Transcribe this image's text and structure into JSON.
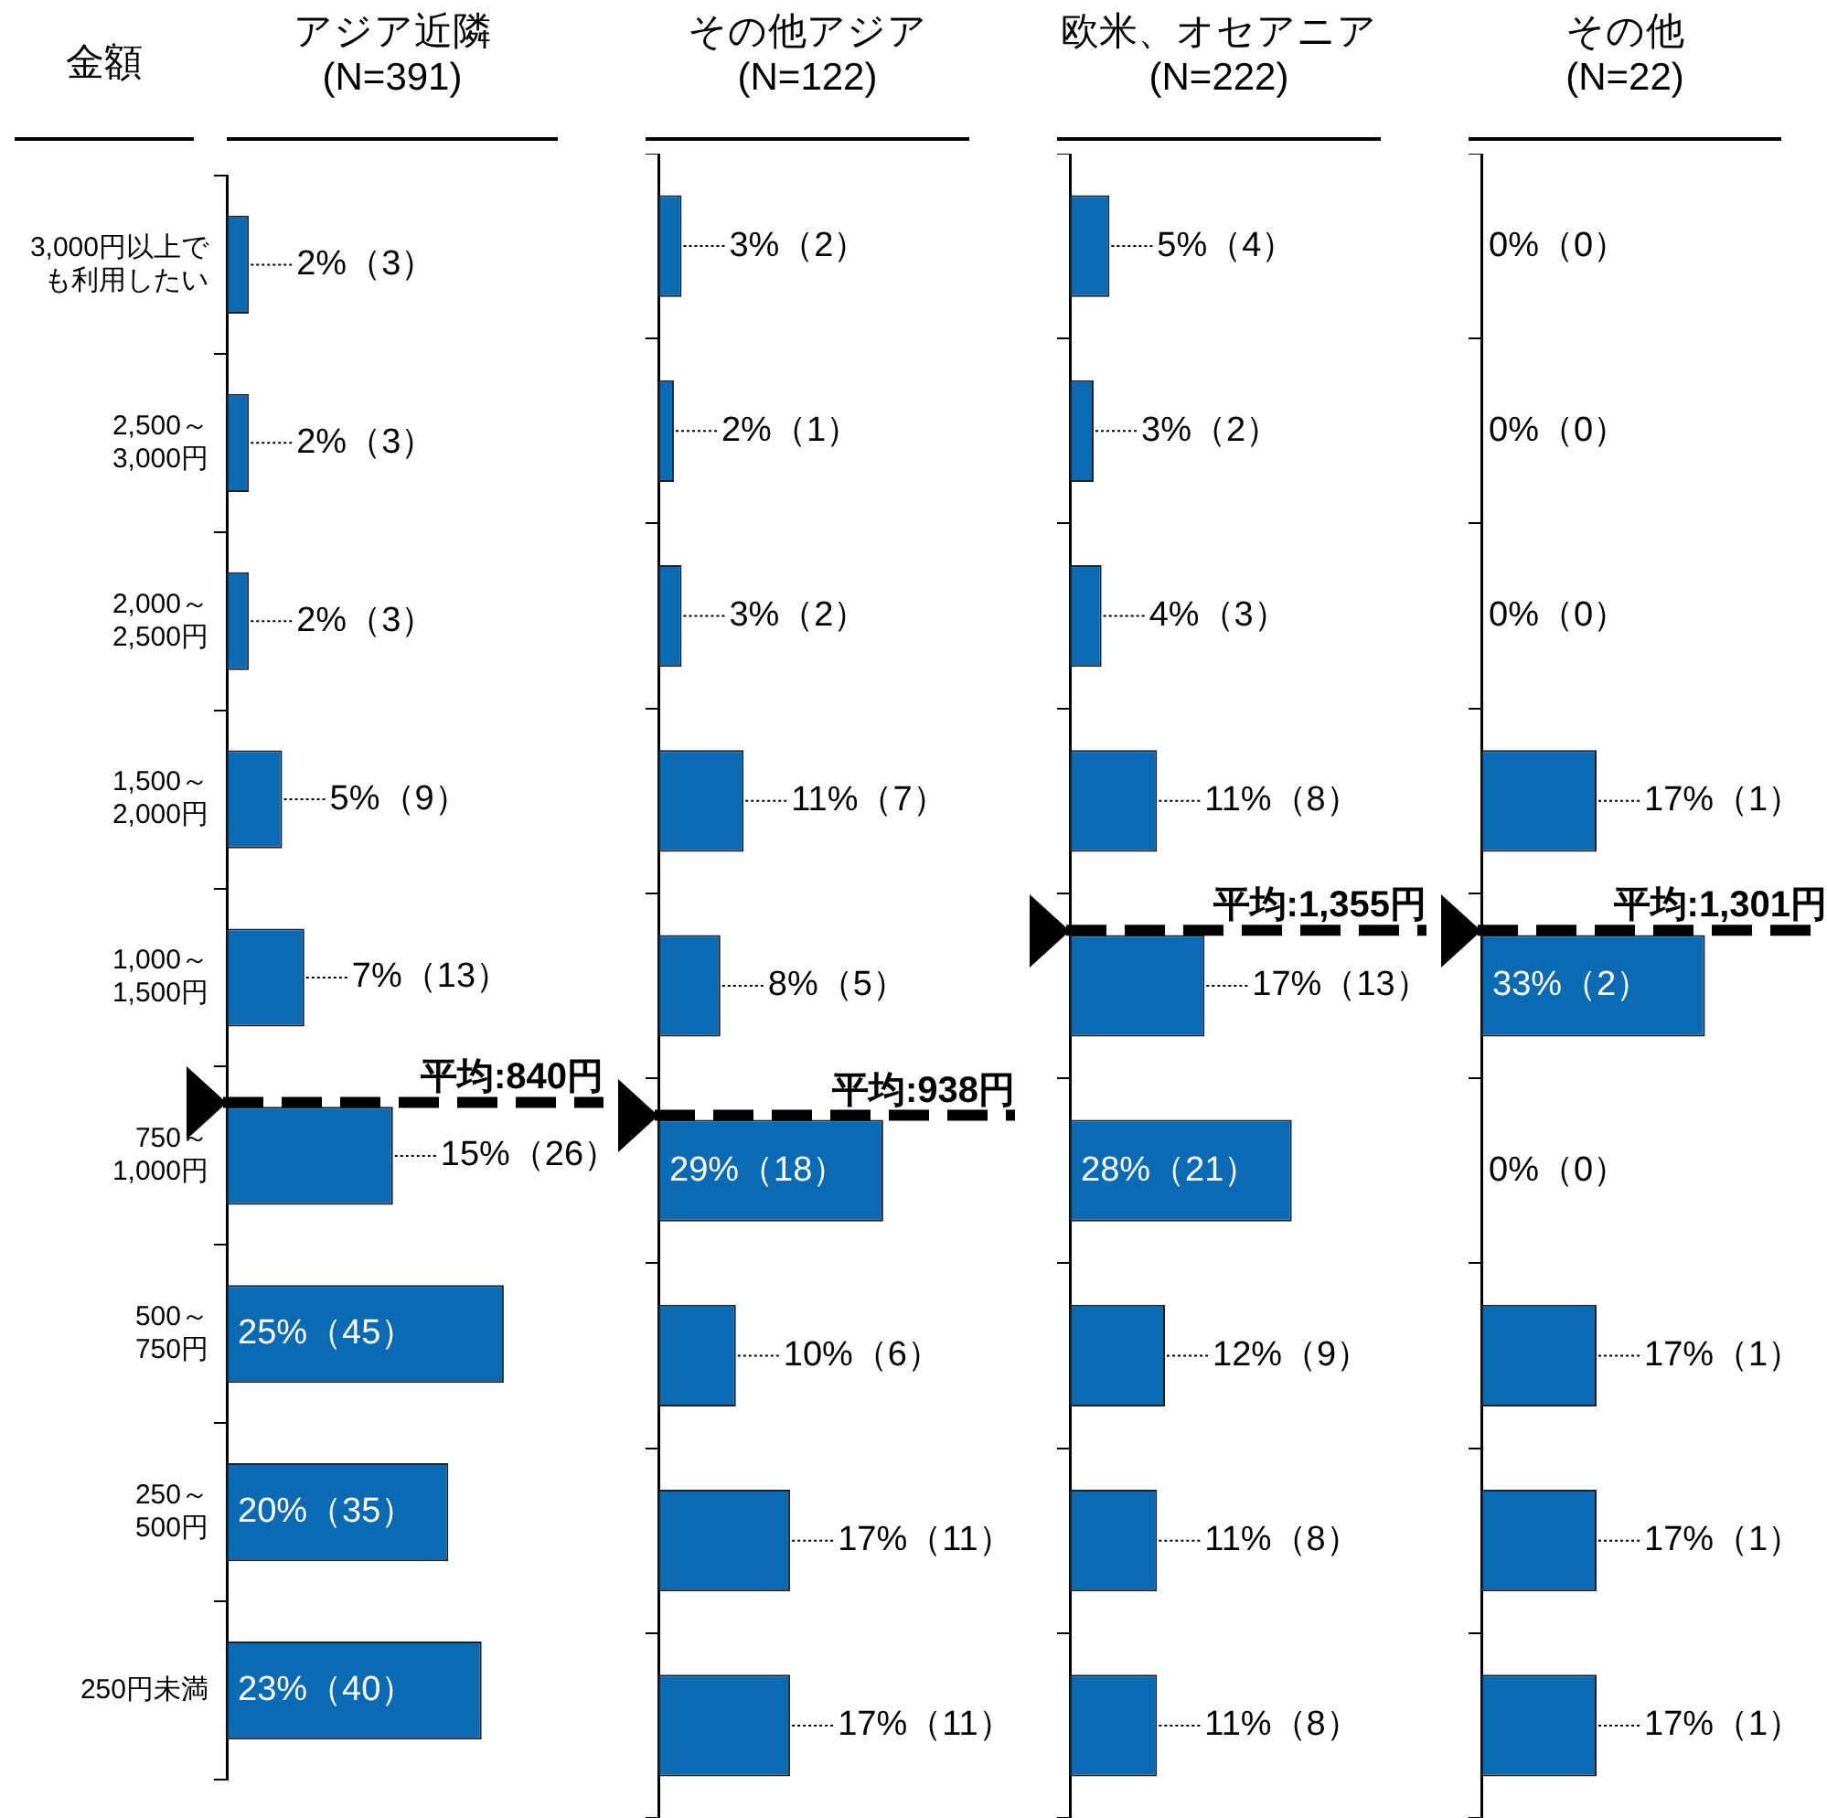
{
  "chart_data": [
    {
      "type": "bar",
      "orientation": "horizontal",
      "title": "アジア近隣\n(N=391)",
      "ylabel": "金額",
      "categories": [
        "3,000円以上でも利用したい",
        "2,500～\n3,000円",
        "2,000～\n2,500円",
        "1,500～\n2,000円",
        "1,000～\n1,500円",
        "750～\n1,000円",
        "500～\n750円",
        "250～\n500円",
        "250円未満"
      ],
      "values": [
        2,
        2,
        2,
        5,
        7,
        15,
        25,
        20,
        23
      ],
      "value_labels": [
        "2%（3）",
        "2%（3）",
        "2%（3）",
        "5%（9）",
        "7%（13）",
        "15%（26）",
        "25%（45）",
        "20%（35）",
        "23%（40）"
      ],
      "color": "#0a6ab4",
      "xlim": [
        0,
        34
      ],
      "tick_labels": "y",
      "legend": false,
      "ref_lines": [
        {
          "axis": "y",
          "value": "750～\n1,000円",
          "label": "平均:840円",
          "line_style": "dashed",
          "color": "#000000"
        }
      ]
    },
    {
      "type": "bar",
      "orientation": "horizontal",
      "title": "その他アジア\n(N=122)",
      "categories": [
        "3,000円以上でも利用したい",
        "2,500～\n3,000円",
        "2,000～\n2,500円",
        "1,500～\n2,000円",
        "1,000～\n1,500円",
        "750～\n1,000円",
        "500～\n750円",
        "250～\n500円",
        "250円未満"
      ],
      "values": [
        3,
        2,
        3,
        11,
        8,
        29,
        10,
        17,
        17
      ],
      "value_labels": [
        "3%（2）",
        "2%（1）",
        "3%（2）",
        "11%（7）",
        "8%（5）",
        "29%（18）",
        "10%（6）",
        "17%（11）",
        "17%（11）"
      ],
      "color": "#0a6ab4",
      "xlim": [
        0,
        46
      ],
      "tick_labels": false,
      "legend": false,
      "ref_lines": [
        {
          "axis": "y",
          "value": "750～\n1,000円",
          "label": "平均:938円",
          "line_style": "dashed",
          "color": "#000000"
        }
      ]
    },
    {
      "type": "bar",
      "orientation": "horizontal",
      "title": "欧米、オセアニア\n(N=222)",
      "categories": [
        "3,000円以上でも利用したい",
        "2,500～\n3,000円",
        "2,000～\n2,500円",
        "1,500～\n2,000円",
        "1,000～\n1,500円",
        "750～\n1,000円",
        "500～\n750円",
        "250～\n500円",
        "250円未満"
      ],
      "values": [
        5,
        3,
        4,
        11,
        17,
        28,
        12,
        11,
        11
      ],
      "value_labels": [
        "5%（4）",
        "3%（2）",
        "4%（3）",
        "11%（8）",
        "17%（13）",
        "28%（21）",
        "12%（9）",
        "11%（8）",
        "11%（8）"
      ],
      "color": "#0a6ab4",
      "xlim": [
        0,
        45
      ],
      "tick_labels": false,
      "legend": false,
      "ref_lines": [
        {
          "axis": "y",
          "value": "1,000～\n1,500円",
          "label": "平均:1,355円",
          "line_style": "dashed",
          "color": "#000000"
        }
      ]
    },
    {
      "type": "bar",
      "orientation": "horizontal",
      "title": "その他\n(N=22)",
      "categories": [
        "3,000円以上でも利用したい",
        "2,500～\n3,000円",
        "2,000～\n2,500円",
        "1,500～\n2,000円",
        "1,000～\n1,500円",
        "750～\n1,000円",
        "500～\n750円",
        "250～\n500円",
        "250円未満"
      ],
      "values": [
        0,
        0,
        0,
        17,
        33,
        0,
        17,
        17,
        17
      ],
      "value_labels": [
        "0%（0）",
        "0%（0）",
        "0%（0）",
        "17%（1）",
        "33%（2）",
        "0%（0）",
        "17%（1）",
        "17%（1）",
        "17%（1）"
      ],
      "color": "#0a6ab4",
      "xlim": [
        0,
        51
      ],
      "tick_labels": false,
      "legend": false,
      "ref_lines": [
        {
          "axis": "y",
          "value": "1,000～\n1,500円",
          "label": "平均:1,301円",
          "line_style": "dashed",
          "color": "#000000"
        }
      ]
    }
  ]
}
